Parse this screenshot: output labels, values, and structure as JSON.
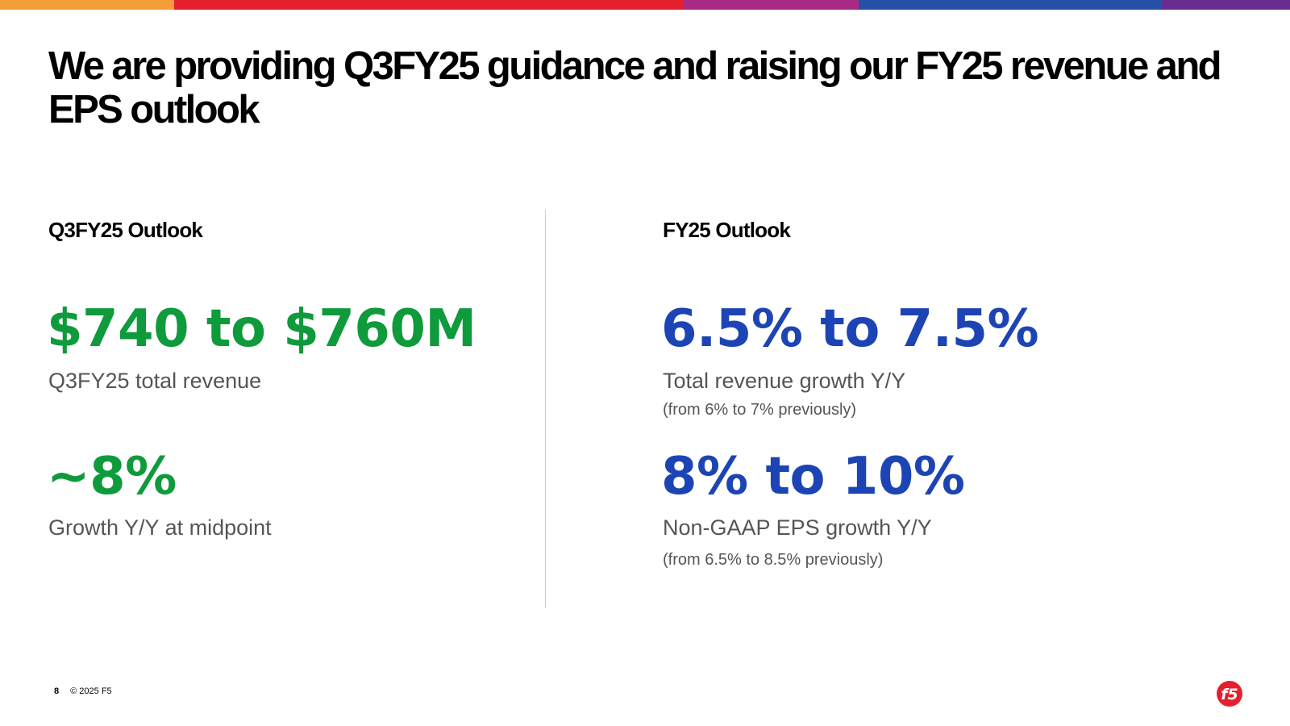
{
  "brand_colors": {
    "orange": "#f39e39",
    "red": "#e4202e",
    "magenta": "#a82a85",
    "blue": "#2451a5",
    "purple": "#6b2c92",
    "green_value": "#0f9a3c",
    "blue_value": "#1d44b4",
    "logo_red": "#e4202e"
  },
  "title": "We are providing Q3FY25 guidance and raising our FY25 revenue and EPS outlook",
  "left_column": {
    "heading": "Q3FY25 Outlook",
    "metrics": [
      {
        "value": "$740 to $760M",
        "label": "Q3FY25 total revenue"
      },
      {
        "value": "~8%",
        "label": "Growth Y/Y at midpoint"
      }
    ]
  },
  "right_column": {
    "heading": "FY25 Outlook",
    "metrics": [
      {
        "value": "6.5% to 7.5%",
        "label": "Total revenue growth Y/Y",
        "note": "(from 6% to 7% previously)"
      },
      {
        "value": "8% to 10%",
        "label": "Non-GAAP EPS growth Y/Y",
        "note": "(from 6.5% to 8.5% previously)"
      }
    ]
  },
  "footer": {
    "page_number": "8",
    "copyright": "© 2025 F5"
  },
  "logo": {
    "text": "f5",
    "icon": "f5-logo-icon"
  }
}
